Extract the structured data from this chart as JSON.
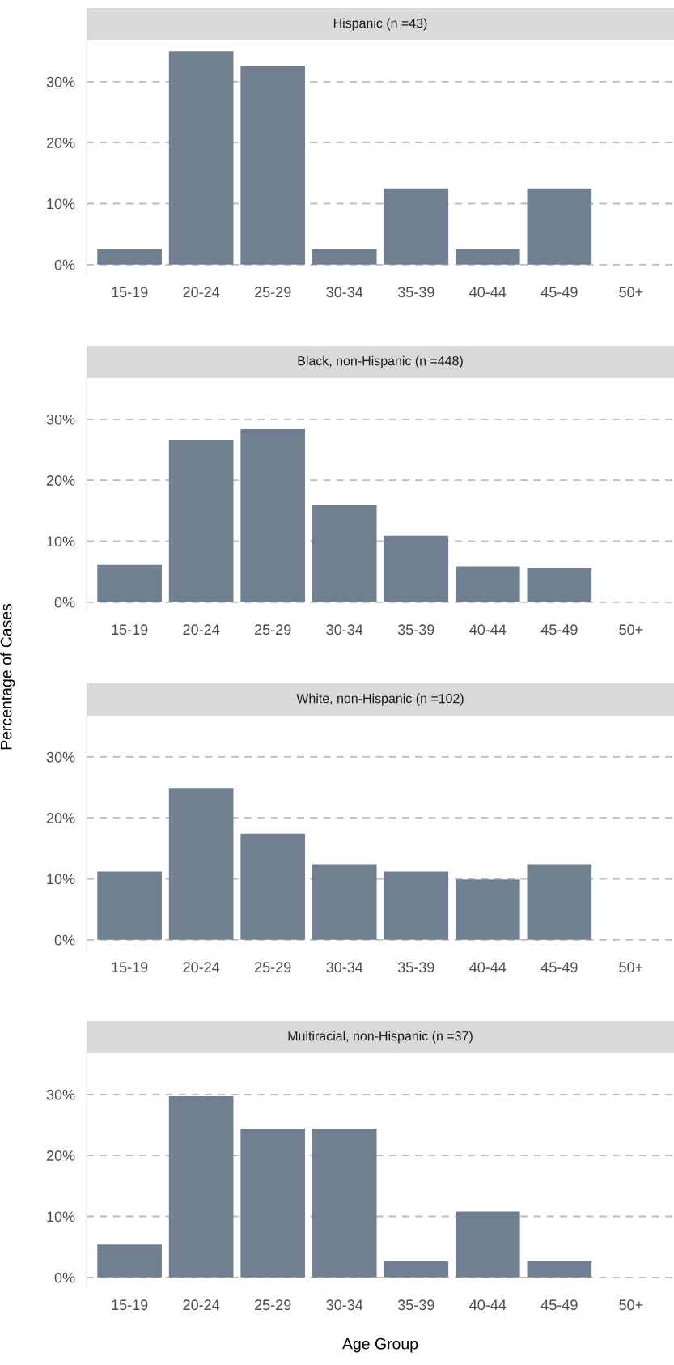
{
  "chart_data": [
    {
      "type": "bar",
      "title": "Hispanic (n =43)",
      "categories": [
        "15-19",
        "20-24",
        "25-29",
        "30-34",
        "35-39",
        "40-44",
        "45-49",
        "50+"
      ],
      "color": "#708090",
      "values": [
        2.5,
        35.0,
        32.5,
        2.5,
        12.5,
        2.5,
        12.5,
        null
      ],
      "ylim": [
        -1.75,
        36.75
      ],
      "yticks": [
        {
          "value": 0,
          "label": "0%"
        },
        {
          "value": 10,
          "label": "10%"
        },
        {
          "value": 20,
          "label": "20%"
        },
        {
          "value": 30,
          "label": "30%"
        }
      ],
      "grid": "y"
    },
    {
      "type": "bar",
      "title": "Black, non-Hispanic (n =448)",
      "categories": [
        "15-19",
        "20-24",
        "25-29",
        "30-34",
        "35-39",
        "40-44",
        "45-49",
        "50+"
      ],
      "color": "#708090",
      "values": [
        6.1,
        26.6,
        28.4,
        15.9,
        10.9,
        5.9,
        5.6,
        null
      ],
      "ylim": [
        -1.75,
        36.75
      ],
      "yticks": [
        {
          "value": 0,
          "label": "0%"
        },
        {
          "value": 10,
          "label": "10%"
        },
        {
          "value": 20,
          "label": "20%"
        },
        {
          "value": 30,
          "label": "30%"
        }
      ],
      "grid": "y"
    },
    {
      "type": "bar",
      "title": "White, non-Hispanic (n =102)",
      "ylabel": "Percentage of Cases",
      "categories": [
        "15-19",
        "20-24",
        "25-29",
        "30-34",
        "35-39",
        "40-44",
        "45-49",
        "50+"
      ],
      "color": "#708090",
      "values": [
        11.2,
        24.9,
        17.4,
        12.4,
        11.2,
        9.9,
        12.4,
        null
      ],
      "ylim": [
        -1.75,
        36.75
      ],
      "yticks": [
        {
          "value": 0,
          "label": "0%"
        },
        {
          "value": 10,
          "label": "10%"
        },
        {
          "value": 20,
          "label": "20%"
        },
        {
          "value": 30,
          "label": "30%"
        }
      ],
      "grid": "y"
    },
    {
      "type": "bar",
      "title": "Multiracial, non-Hispanic (n =37)",
      "xlabel": "Age Group",
      "categories": [
        "15-19",
        "20-24",
        "25-29",
        "30-34",
        "35-39",
        "40-44",
        "45-49",
        "50+"
      ],
      "color": "#708090",
      "values": [
        5.4,
        29.7,
        24.4,
        24.4,
        2.7,
        10.8,
        2.7,
        null
      ],
      "ylim": [
        -1.75,
        36.75
      ],
      "yticks": [
        {
          "value": 0,
          "label": "0%"
        },
        {
          "value": 10,
          "label": "10%"
        },
        {
          "value": 20,
          "label": "20%"
        },
        {
          "value": 30,
          "label": "30%"
        }
      ],
      "grid": "y"
    }
  ]
}
